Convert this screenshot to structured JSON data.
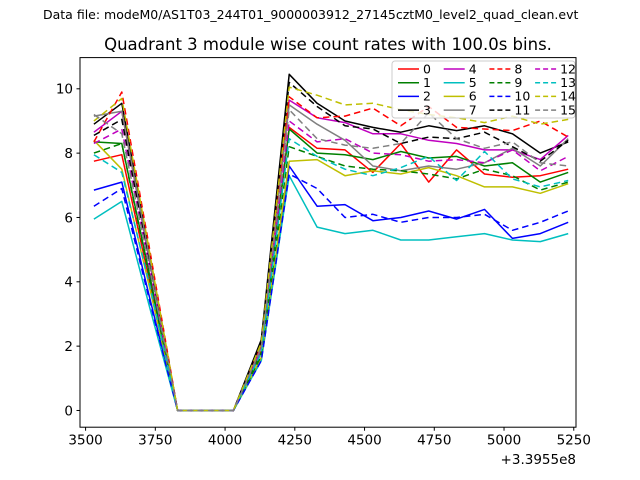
{
  "window": {
    "background": "#ffffff"
  },
  "header": {
    "data_file_label": "Data file: modeM0/AS1T03_244T01_9000003912_27145cztM0_level2_quad_clean.evt"
  },
  "chart_data": {
    "type": "line",
    "title": "Quadrant 3 module wise count rates with 100.0s bins.",
    "xlabel": "",
    "ylabel": "",
    "grid": false,
    "x_axis": {
      "tick_labels": [
        "3500",
        "3750",
        "4000",
        "4250",
        "4500",
        "4750",
        "5000",
        "5250"
      ],
      "tick_values": [
        3500,
        3750,
        4000,
        4250,
        4500,
        4750,
        5000,
        5250
      ],
      "offset_label": "+3.3955e8",
      "xlim": [
        3480,
        5258
      ]
    },
    "y_axis": {
      "tick_labels": [
        "0",
        "2",
        "4",
        "6",
        "8",
        "10"
      ],
      "tick_values": [
        0,
        2,
        4,
        6,
        8,
        10
      ],
      "ylim": [
        -0.52,
        10.97
      ]
    },
    "legend": {
      "position": "upper right",
      "columns": 4,
      "order": "column-major",
      "frame_color": "#cccccc",
      "background": "#ffffff"
    },
    "x": [
      3530,
      3630,
      3730,
      3830,
      3930,
      4030,
      4130,
      4230,
      4330,
      4430,
      4530,
      4630,
      4730,
      4830,
      4930,
      5030,
      5130,
      5230
    ],
    "series": [
      {
        "name": "0",
        "color": "#ff0000",
        "style": "solid",
        "values": [
          7.75,
          7.95,
          4.0,
          0,
          0,
          0,
          1.85,
          8.8,
          8.15,
          8.1,
          7.4,
          8.3,
          7.1,
          8.1,
          7.35,
          7.25,
          7.3,
          7.5
        ]
      },
      {
        "name": "1",
        "color": "#007f00",
        "style": "solid",
        "values": [
          8.35,
          8.3,
          4.2,
          0,
          0,
          0,
          1.8,
          8.75,
          8.0,
          7.95,
          7.8,
          8.05,
          7.85,
          7.9,
          7.6,
          7.7,
          7.1,
          7.4
        ]
      },
      {
        "name": "2",
        "color": "#0000ff",
        "style": "solid",
        "values": [
          6.85,
          7.1,
          3.5,
          0,
          0,
          0,
          1.6,
          7.6,
          6.35,
          6.4,
          5.9,
          6.0,
          6.2,
          5.95,
          6.25,
          5.35,
          5.5,
          5.85
        ]
      },
      {
        "name": "3",
        "color": "#000000",
        "style": "solid",
        "values": [
          8.9,
          9.55,
          4.8,
          0,
          0,
          0,
          2.2,
          10.45,
          9.55,
          9.0,
          8.8,
          8.65,
          8.85,
          8.7,
          8.85,
          8.6,
          8.0,
          8.35
        ]
      },
      {
        "name": "4",
        "color": "#bf00bf",
        "style": "solid",
        "values": [
          8.65,
          9.3,
          4.6,
          0,
          0,
          0,
          2.0,
          9.65,
          9.1,
          8.95,
          8.6,
          8.6,
          8.4,
          8.3,
          8.1,
          8.1,
          7.8,
          8.55
        ]
      },
      {
        "name": "5",
        "color": "#00bfbf",
        "style": "solid",
        "values": [
          5.95,
          6.5,
          3.2,
          0,
          0,
          0,
          1.55,
          7.3,
          5.7,
          5.5,
          5.6,
          5.3,
          5.3,
          5.4,
          5.5,
          5.3,
          5.25,
          5.5
        ]
      },
      {
        "name": "6",
        "color": "#bfbf00",
        "style": "solid",
        "values": [
          8.4,
          7.5,
          3.8,
          0,
          0,
          0,
          1.65,
          7.75,
          7.8,
          7.3,
          7.45,
          7.35,
          7.55,
          7.3,
          6.95,
          6.95,
          6.75,
          7.05
        ]
      },
      {
        "name": "7",
        "color": "#808080",
        "style": "solid",
        "values": [
          9.15,
          9.3,
          4.7,
          0,
          0,
          0,
          2.0,
          9.5,
          8.9,
          8.4,
          7.6,
          7.45,
          7.6,
          7.5,
          7.7,
          8.15,
          7.6,
          8.45
        ]
      },
      {
        "name": "8",
        "color": "#ff0000",
        "style": "dashed",
        "values": [
          8.35,
          9.9,
          5.0,
          0,
          0,
          0,
          2.05,
          9.75,
          9.1,
          9.15,
          9.4,
          8.85,
          9.45,
          8.8,
          8.75,
          8.7,
          9.0,
          8.5
        ]
      },
      {
        "name": "9",
        "color": "#007f00",
        "style": "dashed",
        "values": [
          8.0,
          8.3,
          4.1,
          0,
          0,
          0,
          1.7,
          8.2,
          7.9,
          7.6,
          7.5,
          7.45,
          7.35,
          7.2,
          7.5,
          7.3,
          6.85,
          7.1
        ]
      },
      {
        "name": "10",
        "color": "#0000ff",
        "style": "dashed",
        "values": [
          6.35,
          6.9,
          3.4,
          0,
          0,
          0,
          1.55,
          7.35,
          6.9,
          6.0,
          6.1,
          5.85,
          6.0,
          6.0,
          6.1,
          5.6,
          5.85,
          6.2
        ]
      },
      {
        "name": "11",
        "color": "#000000",
        "style": "dashed",
        "values": [
          8.55,
          9.05,
          4.5,
          0,
          0,
          0,
          2.15,
          10.2,
          9.45,
          8.85,
          8.75,
          8.3,
          8.5,
          8.45,
          8.65,
          8.2,
          7.75,
          8.4
        ]
      },
      {
        "name": "12",
        "color": "#bf00bf",
        "style": "dashed",
        "values": [
          8.3,
          8.75,
          4.4,
          0,
          0,
          0,
          1.9,
          9.0,
          8.35,
          8.45,
          8.0,
          7.95,
          7.75,
          7.8,
          7.7,
          8.1,
          7.45,
          7.9
        ]
      },
      {
        "name": "13",
        "color": "#00bfbf",
        "style": "dashed",
        "values": [
          7.95,
          7.4,
          3.9,
          0,
          0,
          0,
          1.8,
          8.45,
          7.9,
          7.5,
          7.3,
          7.55,
          7.9,
          7.15,
          8.05,
          7.2,
          6.95,
          7.15
        ]
      },
      {
        "name": "14",
        "color": "#bfbf00",
        "style": "dashed",
        "values": [
          9.0,
          9.7,
          4.9,
          0,
          0,
          0,
          2.1,
          10.05,
          9.8,
          9.5,
          9.55,
          9.35,
          9.2,
          9.1,
          8.95,
          9.15,
          8.9,
          9.05
        ]
      },
      {
        "name": "15",
        "color": "#808080",
        "style": "dashed",
        "values": [
          9.2,
          8.6,
          4.45,
          0,
          0,
          0,
          1.95,
          9.35,
          8.45,
          8.25,
          8.15,
          8.3,
          9.25,
          8.45,
          8.15,
          8.35,
          7.7,
          7.6
        ]
      }
    ]
  }
}
